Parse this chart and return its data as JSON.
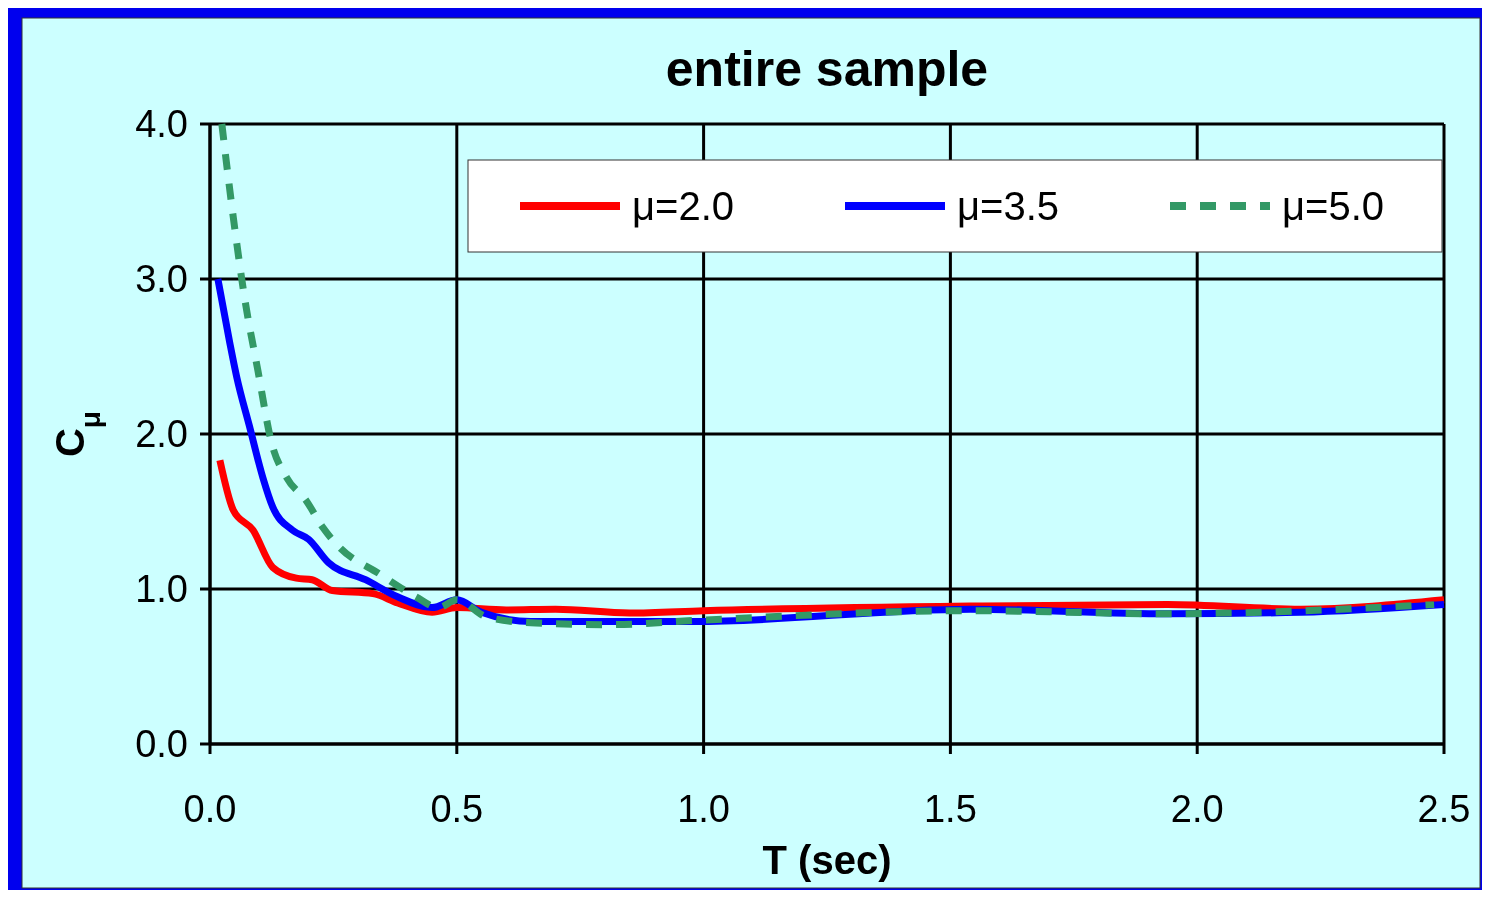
{
  "chart_data": {
    "type": "line",
    "title": "entire sample",
    "xlabel": "T (sec)",
    "ylabel": "C$_{μ}$",
    "xlim": [
      0,
      2.5
    ],
    "ylim": [
      0,
      4
    ],
    "xticks": [
      {
        "value": 0,
        "label": "0.0"
      },
      {
        "value": 0.5,
        "label": "0.5"
      },
      {
        "value": 1,
        "label": "1.0"
      },
      {
        "value": 1.5,
        "label": "1.5"
      },
      {
        "value": 2,
        "label": "2.0"
      },
      {
        "value": 2.5,
        "label": "2.5"
      }
    ],
    "yticks": [
      {
        "value": 0,
        "label": "0.0"
      },
      {
        "value": 1,
        "label": "1.0"
      },
      {
        "value": 2,
        "label": "2.0"
      },
      {
        "value": 3,
        "label": "3.0"
      },
      {
        "value": 4,
        "label": "4.0"
      }
    ],
    "grid": true,
    "legend": "top right",
    "marker": "none",
    "series": [
      {
        "name": "μ=2.0",
        "color": "#ff0000",
        "line_style": "solid",
        "x": [
          0.02,
          0.047,
          0.087,
          0.127,
          0.175,
          0.207,
          0.248,
          0.33,
          0.38,
          0.45,
          0.5,
          0.6,
          0.7,
          0.85,
          1.0,
          1.54,
          1.94,
          2.21,
          2.5
        ],
        "values": [
          1.83,
          1.51,
          1.38,
          1.14,
          1.07,
          1.06,
          0.99,
          0.97,
          0.91,
          0.85,
          0.88,
          0.865,
          0.87,
          0.845,
          0.86,
          0.89,
          0.9,
          0.87,
          0.93
        ]
      },
      {
        "name": "μ=3.5",
        "color": "#0000ff",
        "line_style": "solid",
        "x": [
          0.016,
          0.04,
          0.054,
          0.08,
          0.107,
          0.127,
          0.167,
          0.2,
          0.24,
          0.315,
          0.38,
          0.45,
          0.5,
          0.55,
          0.65,
          0.98,
          1.54,
          1.94,
          2.21,
          2.5
        ],
        "values": [
          3.0,
          2.59,
          2.37,
          2.05,
          1.72,
          1.53,
          1.38,
          1.32,
          1.17,
          1.06,
          0.95,
          0.88,
          0.93,
          0.85,
          0.79,
          0.79,
          0.87,
          0.84,
          0.85,
          0.9
        ]
      },
      {
        "name": "μ=5.0",
        "color": "#339966",
        "line_style": "dashed",
        "x": [
          0.024,
          0.036,
          0.05,
          0.07,
          0.097,
          0.125,
          0.155,
          0.195,
          0.228,
          0.262,
          0.342,
          0.417,
          0.463,
          0.5,
          0.56,
          0.66,
          0.81,
          1.0,
          1.54,
          1.94,
          2.48
        ],
        "values": [
          4.0,
          3.68,
          3.33,
          2.88,
          2.41,
          1.94,
          1.72,
          1.57,
          1.4,
          1.27,
          1.1,
          0.95,
          0.88,
          0.93,
          0.82,
          0.78,
          0.77,
          0.8,
          0.86,
          0.84,
          0.9
        ]
      }
    ]
  }
}
